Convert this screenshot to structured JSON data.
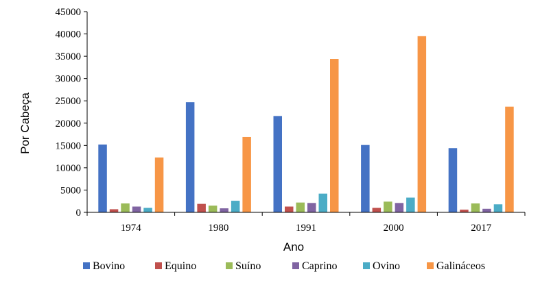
{
  "chart_data": {
    "type": "bar",
    "xlabel": "Ano",
    "ylabel": "Por Cabeça",
    "ylim": [
      0,
      45000
    ],
    "yticks": [
      0,
      5000,
      10000,
      15000,
      20000,
      25000,
      30000,
      35000,
      40000,
      45000
    ],
    "grid": false,
    "legend": "bottom",
    "categories": [
      "1974",
      "1980",
      "1991",
      "2000",
      "2017"
    ],
    "series": [
      {
        "name": "Bovino",
        "color": "#4472C4",
        "values": [
          15200,
          24700,
          21600,
          15100,
          14400
        ]
      },
      {
        "name": "Equino",
        "color": "#C0504D",
        "values": [
          700,
          1900,
          1300,
          1000,
          600
        ]
      },
      {
        "name": "Suíno",
        "color": "#9BBB59",
        "values": [
          2000,
          1500,
          2200,
          2400,
          2000
        ]
      },
      {
        "name": "Caprino",
        "color": "#8064A2",
        "values": [
          1300,
          900,
          2100,
          2100,
          800
        ]
      },
      {
        "name": "Ovino",
        "color": "#4BACC6",
        "values": [
          1000,
          2600,
          4200,
          3300,
          1800
        ]
      },
      {
        "name": "Galináceos",
        "color": "#F79646",
        "values": [
          12300,
          16900,
          34400,
          39500,
          23700
        ]
      }
    ]
  }
}
